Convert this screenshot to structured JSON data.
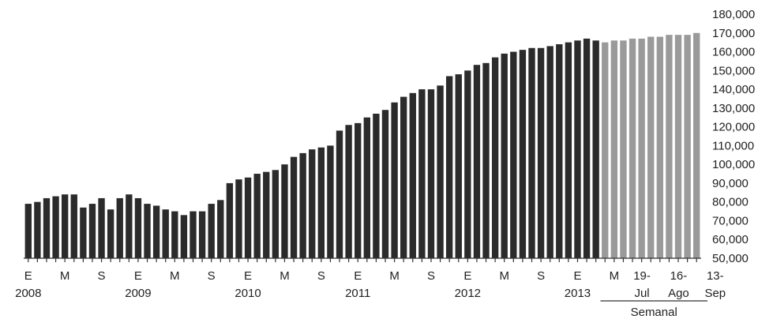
{
  "chart_data": {
    "type": "bar",
    "title": "",
    "xlabel": "",
    "ylabel": "",
    "ylim": [
      50000,
      180000
    ],
    "y_ticks": [
      50000,
      60000,
      70000,
      80000,
      90000,
      100000,
      110000,
      120000,
      130000,
      140000,
      150000,
      160000,
      170000,
      180000
    ],
    "y_tick_labels": [
      "50,000",
      "60,000",
      "70,000",
      "80,000",
      "90,000",
      "100,000",
      "110,000",
      "120,000",
      "130,000",
      "140,000",
      "150,000",
      "160,000",
      "170,000",
      "180,000"
    ],
    "y_axis_position": "right",
    "grid": false,
    "colors": {
      "monthly": "#2b2b2b",
      "weekly": "#9a9a9a"
    },
    "series": [
      {
        "values": [
          79000,
          80000,
          82000,
          83000,
          84000,
          84000,
          77000,
          79000,
          82000,
          76000,
          82000,
          84000,
          82000,
          79000,
          78000,
          76000,
          75000,
          73000,
          75000,
          75000,
          79000,
          81000,
          90000,
          92000,
          93000,
          95000,
          96000,
          97000,
          100000,
          104000,
          106000,
          108000,
          109000,
          110000,
          118000,
          121000,
          122000,
          125000,
          127000,
          129000,
          133000,
          136000,
          138000,
          140000,
          140000,
          142000,
          147000,
          148000,
          150000,
          153000,
          154000,
          157000,
          159000,
          160000,
          161000,
          162000,
          162000,
          163000,
          164000,
          165000,
          166000,
          167000,
          166000
        ],
        "color": "#2b2b2b"
      },
      {
        "values": [
          165000,
          166000,
          166000,
          167000,
          167000,
          168000,
          168000,
          169000,
          169000,
          169000,
          170000
        ],
        "color": "#9a9a9a"
      }
    ],
    "x_tick_labels": [
      {
        "bar_index": 0,
        "month": "E",
        "year": "2008"
      },
      {
        "bar_index": 4,
        "month": "M"
      },
      {
        "bar_index": 8,
        "month": "S"
      },
      {
        "bar_index": 12,
        "month": "E",
        "year": "2009"
      },
      {
        "bar_index": 16,
        "month": "M"
      },
      {
        "bar_index": 20,
        "month": "S"
      },
      {
        "bar_index": 24,
        "month": "E",
        "year": "2010"
      },
      {
        "bar_index": 28,
        "month": "M"
      },
      {
        "bar_index": 32,
        "month": "S"
      },
      {
        "bar_index": 36,
        "month": "E",
        "year": "2011"
      },
      {
        "bar_index": 40,
        "month": "M"
      },
      {
        "bar_index": 44,
        "month": "S"
      },
      {
        "bar_index": 48,
        "month": "E",
        "year": "2012"
      },
      {
        "bar_index": 52,
        "month": "M"
      },
      {
        "bar_index": 56,
        "month": "S"
      },
      {
        "bar_index": 60,
        "month": "E",
        "year": "2013"
      },
      {
        "bar_index": 64,
        "month": "M"
      }
    ],
    "weekly_tick_labels": [
      {
        "bar_index": 66,
        "day": "19-",
        "month": "Jul"
      },
      {
        "bar_index": 70,
        "day": "16-",
        "month": "Ago"
      },
      {
        "bar_index": 74,
        "day": "13-",
        "month": "Sep"
      }
    ],
    "weekly_group_label": "Semanal"
  }
}
